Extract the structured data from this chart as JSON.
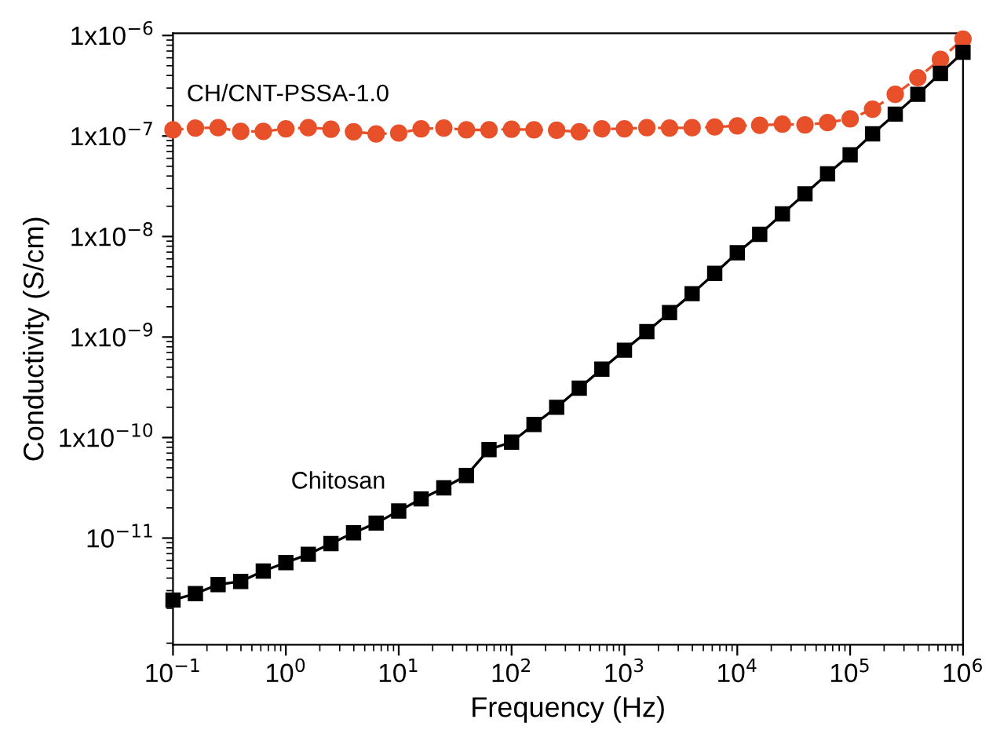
{
  "chart_data": {
    "type": "line",
    "xlabel": "Frequency (Hz)",
    "ylabel": "Conductivity (S/cm)",
    "log": "xy",
    "xlim": [
      0.1,
      1000000
    ],
    "ylim": [
      8.7e-13,
      1.05e-06
    ],
    "xticks": [
      {
        "value": 0.1,
        "label": "10$^{−1}$"
      },
      {
        "value": 1,
        "label": "10$^{0}$"
      },
      {
        "value": 10,
        "label": "10$^{1}$"
      },
      {
        "value": 100,
        "label": "10$^{2}$"
      },
      {
        "value": 1000,
        "label": "10$^{3}$"
      },
      {
        "value": 10000,
        "label": "10$^{4}$"
      },
      {
        "value": 100000,
        "label": "10$^{5}$"
      },
      {
        "value": 1000000,
        "label": "10$^{6}$"
      }
    ],
    "yticks": [
      {
        "value": 1e-11,
        "label": "10$^{−11}$"
      },
      {
        "value": 1e-10,
        "label": "1x10$^{−10}$"
      },
      {
        "value": 1e-09,
        "label": "1x10$^{−9}$"
      },
      {
        "value": 1e-08,
        "label": "1x10$^{−8}$"
      },
      {
        "value": 1e-07,
        "label": "1x10$^{−7}$"
      },
      {
        "value": 1e-06,
        "label": "1x10$^{−6}$"
      }
    ],
    "x": [
      0.1,
      0.158,
      0.251,
      0.398,
      0.631,
      1,
      1.58,
      2.51,
      3.98,
      6.31,
      10,
      15.8,
      25.1,
      39.8,
      63.1,
      100,
      158,
      251,
      398,
      631,
      1000,
      1580,
      2510,
      3980,
      6310,
      10000,
      15800,
      25100,
      39800,
      63100,
      100000,
      158000,
      251000,
      398000,
      631000,
      1000000
    ],
    "grid": false,
    "legend": false,
    "series": [
      {
        "name": "CH/CNT-PSSA-1.0",
        "color": "#e8502a",
        "marker": "circle",
        "line_style": "dashed",
        "values": [
          1.15e-07,
          1.2e-07,
          1.21e-07,
          1.11e-07,
          1.11e-07,
          1.18e-07,
          1.21e-07,
          1.17e-07,
          1.1e-07,
          1.05e-07,
          1.07e-07,
          1.18e-07,
          1.2e-07,
          1.15e-07,
          1.15e-07,
          1.17e-07,
          1.15e-07,
          1.14e-07,
          1.1e-07,
          1.18e-07,
          1.18e-07,
          1.21e-07,
          1.2e-07,
          1.21e-07,
          1.23e-07,
          1.26e-07,
          1.28e-07,
          1.31e-07,
          1.29e-07,
          1.36e-07,
          1.48e-07,
          1.85e-07,
          2.6e-07,
          3.8e-07,
          5.8e-07,
          9.2e-07
        ]
      },
      {
        "name": "Chitosan",
        "color": "#000000",
        "marker": "square",
        "line_style": "solid",
        "values": [
          2.42e-12,
          2.8e-12,
          3.45e-12,
          3.7e-12,
          4.7e-12,
          5.7e-12,
          6.9e-12,
          8.8e-12,
          1.13e-11,
          1.41e-11,
          1.86e-11,
          2.45e-11,
          3.16e-11,
          4.2e-11,
          7.6e-11,
          9e-11,
          1.35e-10,
          2e-10,
          3.1e-10,
          4.8e-10,
          7.4e-10,
          1.13e-09,
          1.75e-09,
          2.7e-09,
          4.3e-09,
          6.9e-09,
          1.05e-08,
          1.68e-08,
          2.66e-08,
          4.2e-08,
          6.5e-08,
          1.05e-07,
          1.65e-07,
          2.6e-07,
          4.2e-07,
          6.8e-07
        ]
      }
    ]
  }
}
